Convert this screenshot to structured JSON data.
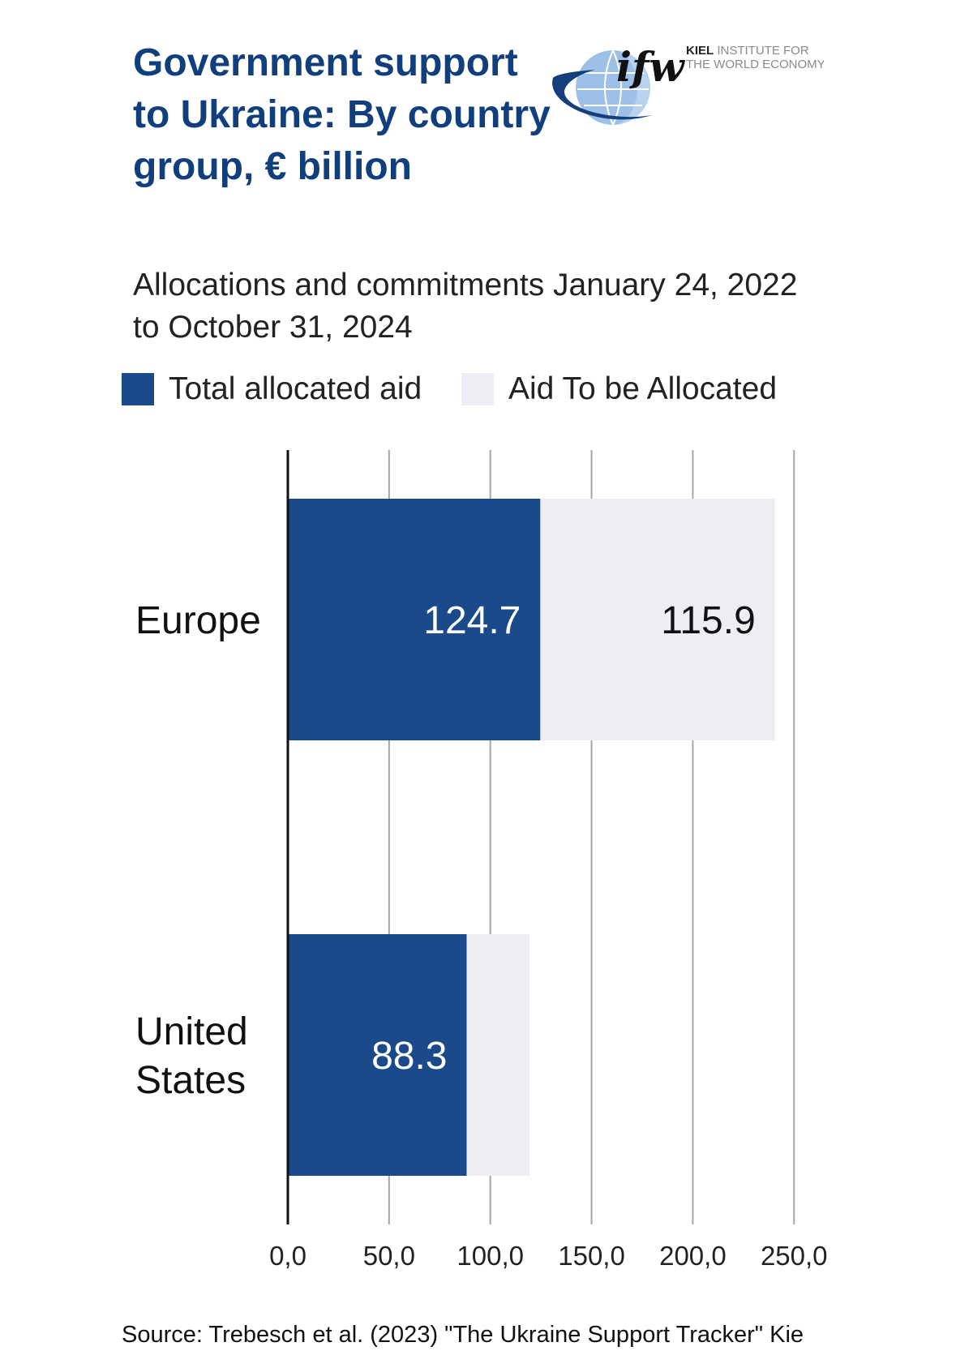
{
  "header": {
    "title": "Government support to Ukraine: By country group, € billion",
    "subtitle": "Allocations and commitments January 24, 2022 to October 31, 2024"
  },
  "logo": {
    "mark": "ifw",
    "line1_bold": "KIEL",
    "line1_rest": "INSTITUTE FOR",
    "line2": "THE WORLD ECONOMY",
    "icon": "globe-logo-icon"
  },
  "colors": {
    "allocated": "#1b4a8b",
    "to_be_allocated": "#eceef4",
    "title": "#113f7d",
    "grid": "#a6a6a6"
  },
  "chart_data": {
    "type": "bar",
    "orientation": "horizontal",
    "stacked": true,
    "categories": [
      "Europe",
      "United States"
    ],
    "series": [
      {
        "name": "Total allocated aid",
        "values": [
          124.7,
          88.3
        ],
        "labels": [
          "124.7",
          "88.3"
        ]
      },
      {
        "name": "Aid To be Allocated",
        "values": [
          115.9,
          31.1
        ],
        "labels": [
          "115.9",
          ""
        ]
      }
    ],
    "xlim": [
      0,
      250
    ],
    "xticks": [
      0,
      50,
      100,
      150,
      200,
      250
    ],
    "xtick_labels": [
      "0,0",
      "50,0",
      "100,0",
      "150,0",
      "200,0",
      "250,0"
    ],
    "grid": true,
    "legend": "top-left"
  },
  "footer": {
    "source": "Source: Trebesch et al. (2023) \"The Ukraine Support Tracker\" Kie"
  }
}
